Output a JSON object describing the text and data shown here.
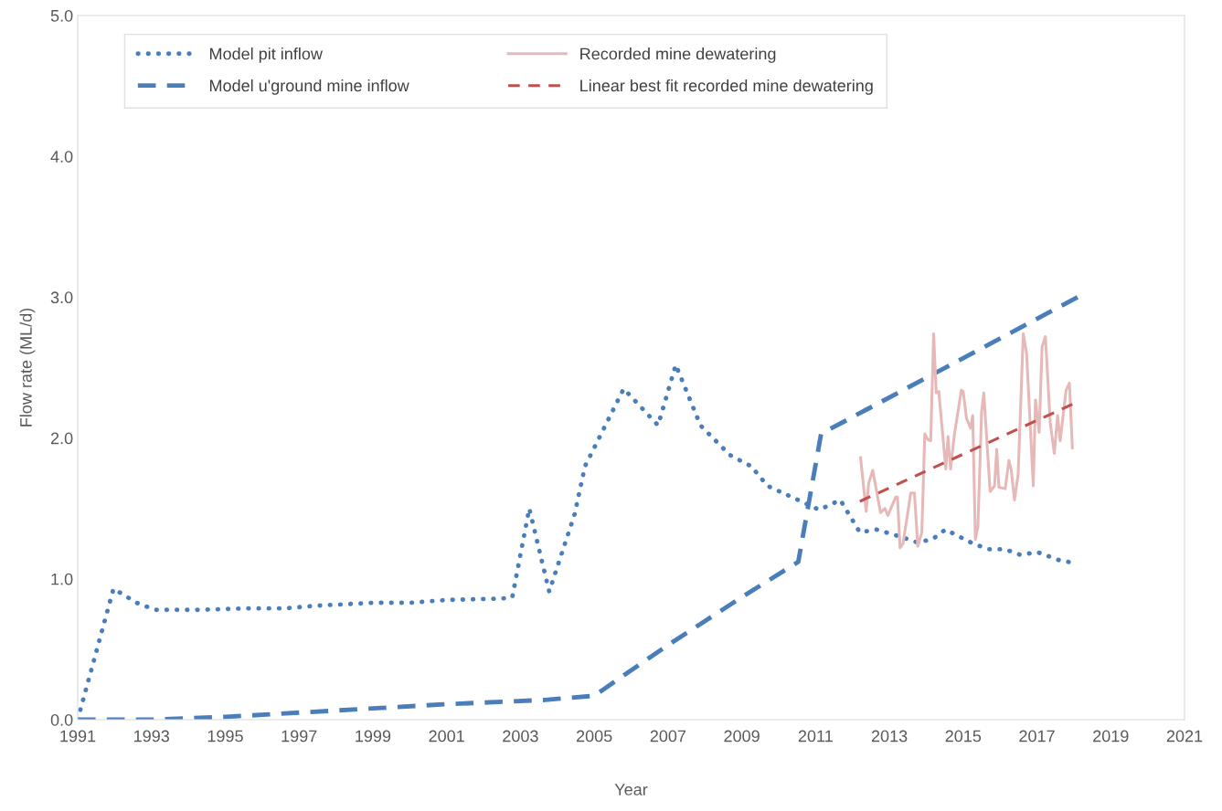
{
  "chart_data": {
    "type": "line",
    "xlabel": "Year",
    "ylabel": "Flow rate (ML/d)",
    "xlim": [
      1991,
      2021
    ],
    "xticks": [
      1991,
      1993,
      1995,
      1997,
      1999,
      2001,
      2003,
      2005,
      2007,
      2009,
      2011,
      2013,
      2015,
      2017,
      2019,
      2021
    ],
    "ylim": [
      0,
      5
    ],
    "yticks": [
      {
        "value": 0,
        "label": "0.0"
      },
      {
        "value": 1,
        "label": "1.0"
      },
      {
        "value": 2,
        "label": "2.0"
      },
      {
        "value": 3,
        "label": "3.0"
      },
      {
        "value": 4,
        "label": "4.0"
      },
      {
        "value": 5,
        "label": "5.0"
      }
    ],
    "grid": false,
    "legend": "top left",
    "series": [
      {
        "name": "Model pit inflow",
        "color": "#4a7ebb",
        "line_style": "dotted",
        "x": [
          1991,
          1991.97,
          1992.6,
          1993.1,
          1994.3,
          1995.5,
          1996.6,
          1997.5,
          1999,
          2000,
          2001,
          2002.5,
          2002.78,
          2003.24,
          2003.78,
          2004.47,
          2004.75,
          2005.8,
          2006.73,
          2007.21,
          2007.88,
          2008.67,
          2009.25,
          2009.7,
          2010.69,
          2011.1,
          2011.67,
          2012.2,
          2012.65,
          2013.29,
          2013.75,
          2014.16,
          2014.52,
          2015.27,
          2015.69,
          2016.14,
          2016.55,
          2017.01,
          2017.63,
          2017.86
        ],
        "values": [
          0,
          0.93,
          0.83,
          0.78,
          0.78,
          0.79,
          0.79,
          0.81,
          0.83,
          0.83,
          0.85,
          0.86,
          0.87,
          1.5,
          0.91,
          1.46,
          1.8,
          2.35,
          2.09,
          2.52,
          2.09,
          1.88,
          1.8,
          1.66,
          1.54,
          1.49,
          1.56,
          1.33,
          1.35,
          1.3,
          1.26,
          1.28,
          1.35,
          1.25,
          1.21,
          1.21,
          1.17,
          1.19,
          1.13,
          1.12
        ]
      },
      {
        "name": "Model u'ground mine inflow",
        "color": "#4a7ebb",
        "line_style": "dashed",
        "x": [
          1991,
          1993,
          1994,
          1995,
          1997,
          1999,
          2001,
          2003.67,
          2005,
          2007,
          2009,
          2010.53,
          2011.15,
          2018.1
        ],
        "values": [
          0,
          0,
          0.01,
          0.02,
          0.05,
          0.08,
          0.11,
          0.14,
          0.17,
          0.53,
          0.87,
          1.12,
          2.03,
          3.0
        ]
      },
      {
        "name": "Recorded mine dewatering",
        "color": "#e6b9b8",
        "line_style": "solid",
        "x": [
          2012.22,
          2012.37,
          2012.44,
          2012.55,
          2012.76,
          2012.88,
          2012.96,
          2013.17,
          2013.22,
          2013.29,
          2013.37,
          2013.58,
          2013.68,
          2013.77,
          2013.88,
          2013.96,
          2014.04,
          2014.12,
          2014.2,
          2014.27,
          2014.34,
          2014.53,
          2014.59,
          2014.66,
          2014.76,
          2014.95,
          2015.0,
          2015.09,
          2015.2,
          2015.26,
          2015.33,
          2015.4,
          2015.5,
          2015.56,
          2015.73,
          2015.85,
          2015.91,
          2015.97,
          2016.14,
          2016.24,
          2016.3,
          2016.39,
          2016.49,
          2016.63,
          2016.72,
          2016.9,
          2016.96,
          2017.06,
          2017.14,
          2017.23,
          2017.36,
          2017.47,
          2017.56,
          2017.63,
          2017.79,
          2017.88,
          2017.96
        ],
        "values": [
          1.86,
          1.48,
          1.68,
          1.77,
          1.47,
          1.5,
          1.45,
          1.58,
          1.58,
          1.22,
          1.25,
          1.61,
          1.61,
          1.23,
          1.33,
          2.03,
          1.99,
          1.98,
          2.74,
          2.32,
          2.33,
          1.78,
          2.01,
          1.78,
          2.02,
          2.34,
          2.33,
          2.14,
          2.07,
          2.16,
          1.28,
          1.37,
          2.19,
          2.32,
          1.62,
          1.66,
          1.92,
          1.65,
          1.64,
          1.84,
          1.78,
          1.56,
          1.74,
          2.74,
          2.6,
          1.66,
          2.27,
          2.04,
          2.65,
          2.72,
          2.11,
          1.89,
          2.16,
          1.98,
          2.34,
          2.39,
          1.93
        ]
      },
      {
        "name": "Linear best fit recorded mine dewatering",
        "color": "#c0504d",
        "line_style": "dashed",
        "x": [
          2012.2,
          2017.96
        ],
        "values": [
          1.55,
          2.24
        ]
      }
    ]
  }
}
